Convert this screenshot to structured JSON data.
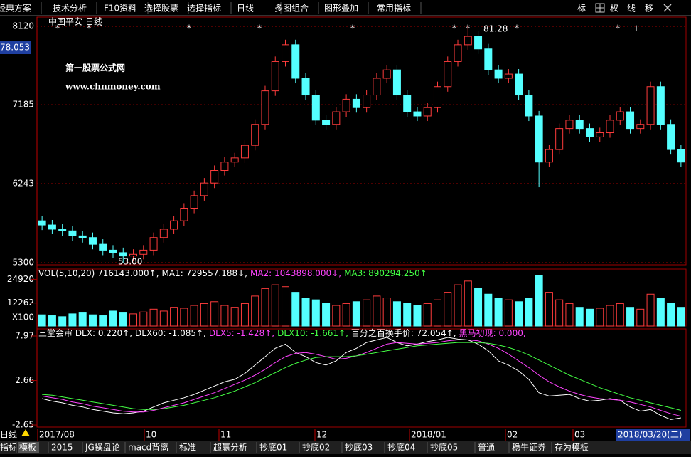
{
  "toolbar": {
    "items": [
      "经典方案",
      "技术分析",
      "F10资料",
      "选择股票",
      "选择指标",
      "日线",
      "多图组合",
      "图形叠加",
      "常用指标"
    ],
    "right_buttons": [
      "标",
      "权",
      "线",
      "移"
    ]
  },
  "chart_data": [
    {
      "type": "candlestick",
      "stock": "中国平安",
      "period": "日线",
      "current_price": "78.053",
      "max_label": "81.28",
      "min_label": "53.00",
      "watermark": [
        "第一股票公式网",
        "www.chnmoney.com"
      ],
      "up_color": "#ff3c3c",
      "down_color": "#54ffff",
      "ylim": [
        5275,
        8230
      ],
      "yticks": [
        8120,
        7185,
        6243,
        5300
      ],
      "grid": true,
      "open": [
        5800,
        5750,
        5700,
        5680,
        5620,
        5600,
        5520,
        5450,
        5420,
        5380,
        5400,
        5450,
        5600,
        5700,
        5800,
        5950,
        6100,
        6250,
        6400,
        6500,
        6550,
        6700,
        6950,
        7350,
        7700,
        7900,
        7500,
        7300,
        7000,
        6950,
        7100,
        7250,
        7150,
        7300,
        7500,
        7600,
        7300,
        7100,
        7050,
        7150,
        7400,
        7700,
        7900,
        8000,
        7850,
        7600,
        7500,
        7550,
        7300,
        7050,
        6500,
        6650,
        6900,
        7000,
        6900,
        6800,
        6850,
        7000,
        7100,
        6900,
        6950,
        7400,
        6950,
        6650
      ],
      "close": [
        5750,
        5700,
        5680,
        5620,
        5600,
        5520,
        5450,
        5420,
        5380,
        5400,
        5450,
        5600,
        5700,
        5800,
        5950,
        6100,
        6250,
        6400,
        6500,
        6550,
        6700,
        6950,
        7350,
        7700,
        7900,
        7500,
        7300,
        7000,
        6950,
        7100,
        7250,
        7150,
        7300,
        7500,
        7600,
        7300,
        7100,
        7050,
        7150,
        7400,
        7700,
        7900,
        8000,
        7850,
        7600,
        7500,
        7550,
        7300,
        7050,
        6500,
        6650,
        6900,
        7000,
        6900,
        6800,
        6850,
        7000,
        7100,
        6900,
        6950,
        7400,
        6950,
        6650,
        6500
      ],
      "high": [
        5860,
        5810,
        5760,
        5740,
        5680,
        5660,
        5580,
        5510,
        5480,
        5460,
        5510,
        5660,
        5760,
        5860,
        6010,
        6160,
        6310,
        6460,
        6560,
        6610,
        6760,
        7010,
        7410,
        7760,
        7960,
        7960,
        7560,
        7360,
        7060,
        7160,
        7310,
        7310,
        7360,
        7560,
        7660,
        7660,
        7360,
        7160,
        7210,
        7460,
        7760,
        7960,
        8128,
        8060,
        7910,
        7660,
        7610,
        7610,
        7360,
        7110,
        6710,
        6960,
        7060,
        7060,
        6960,
        6910,
        7060,
        7160,
        7160,
        7010,
        7460,
        7460,
        7010,
        6710
      ],
      "low": [
        5690,
        5640,
        5620,
        5560,
        5540,
        5460,
        5390,
        5360,
        5300,
        5320,
        5340,
        5390,
        5540,
        5640,
        5740,
        5890,
        6040,
        6190,
        6340,
        6440,
        6490,
        6640,
        6890,
        7290,
        7640,
        7440,
        7240,
        6940,
        6890,
        6890,
        7040,
        7090,
        7090,
        7240,
        7440,
        7240,
        7040,
        6990,
        6990,
        7090,
        7340,
        7640,
        7840,
        7790,
        7540,
        7440,
        7440,
        7240,
        6990,
        6200,
        6440,
        6590,
        6840,
        6840,
        6740,
        6740,
        6790,
        6940,
        6840,
        6840,
        6890,
        6890,
        6590,
        6440
      ]
    },
    {
      "type": "bar",
      "legend": [
        {
          "text": "VOL(5,10,20) 716143.000↑,",
          "color": "#ffffff"
        },
        {
          "text": "MA1: 729557.188↓,",
          "color": "#ffffff"
        },
        {
          "text": "MA2: 1043898.000↓,",
          "color": "#ff44ff"
        },
        {
          "text": "MA3: 890294.250↑",
          "color": "#44ff44"
        }
      ],
      "unit_label": "X100",
      "ylim": [
        0,
        30400
      ],
      "yticks": [
        24920,
        12262
      ],
      "values": [
        6000,
        5500,
        5000,
        6500,
        7000,
        6000,
        5500,
        8000,
        7000,
        6500,
        7500,
        9000,
        8000,
        10000,
        9500,
        11000,
        12000,
        13000,
        11000,
        10000,
        12000,
        16000,
        20000,
        22000,
        21000,
        18000,
        15000,
        14000,
        12000,
        11000,
        12000,
        13000,
        14000,
        16000,
        15000,
        13000,
        12000,
        11000,
        12000,
        14000,
        18000,
        22000,
        24000,
        20000,
        17000,
        15000,
        14000,
        13000,
        15000,
        27000,
        18000,
        14000,
        12000,
        10000,
        9000,
        9500,
        11000,
        12000,
        10000,
        9000,
        17000,
        15000,
        12000,
        10000
      ]
    },
    {
      "type": "line",
      "legend": [
        {
          "text": "三堂会审 DLX: 0.220↑,",
          "color": "#ffffff"
        },
        {
          "text": "DLX60: -1.085↑,",
          "color": "#ffffff"
        },
        {
          "text": "DLX5: -1.428↑,",
          "color": "#ff44ff"
        },
        {
          "text": "DLX10: -1.661↑,",
          "color": "#44ff44"
        },
        {
          "text": "百分之百换手价: 72.054↑,",
          "color": "#ffffff"
        },
        {
          "text": "黑马初现: 0.000,",
          "color": "#ff44ff"
        }
      ],
      "ylim": [
        -2.9,
        8.82
      ],
      "yticks": [
        7.97,
        2.66,
        -2.65
      ],
      "series": [
        {
          "color": "#ffffff",
          "values": [
            0.5,
            0.2,
            0,
            -0.3,
            -0.5,
            -0.8,
            -1,
            -1.2,
            -1.3,
            -1.2,
            -1,
            -0.5,
            0,
            0.3,
            0.6,
            1,
            1.5,
            2,
            2.5,
            2.8,
            3.5,
            4.5,
            5.5,
            6.5,
            7,
            6,
            5.5,
            4.8,
            4.5,
            5,
            6,
            6.5,
            7.2,
            7.5,
            7.8,
            7.2,
            6.8,
            7,
            7.3,
            7.5,
            7.8,
            7.6,
            7.5,
            7,
            6.2,
            5,
            4.5,
            3.8,
            2.8,
            1.2,
            0.8,
            0.9,
            1,
            0.5,
            0.2,
            0.3,
            0.5,
            0.3,
            -0.5,
            -1,
            -0.8,
            -1.5,
            -2,
            -1.8
          ]
        },
        {
          "color": "#ff44ff",
          "values": [
            0.8,
            0.6,
            0.4,
            0.1,
            -0.1,
            -0.4,
            -0.6,
            -0.8,
            -1,
            -1.1,
            -1.1,
            -0.9,
            -0.6,
            -0.3,
            0,
            0.4,
            0.8,
            1.2,
            1.7,
            2.2,
            2.7,
            3.3,
            4,
            4.8,
            5.5,
            5.9,
            6,
            5.8,
            5.5,
            5.2,
            5.3,
            5.6,
            6,
            6.5,
            7,
            7.2,
            7.1,
            7,
            7.1,
            7.2,
            7.4,
            7.5,
            7.5,
            7.4,
            7,
            6.5,
            5.8,
            5,
            4.2,
            3.3,
            2.5,
            1.9,
            1.4,
            1,
            0.7,
            0.5,
            0.4,
            0.3,
            0.1,
            -0.2,
            -0.5,
            -0.9,
            -1.3,
            -1.6
          ]
        },
        {
          "color": "#44ff44",
          "values": [
            1,
            0.9,
            0.7,
            0.5,
            0.3,
            0.1,
            -0.1,
            -0.3,
            -0.5,
            -0.7,
            -0.8,
            -0.8,
            -0.7,
            -0.5,
            -0.3,
            0,
            0.3,
            0.6,
            1,
            1.4,
            1.9,
            2.4,
            3,
            3.6,
            4.2,
            4.7,
            5.1,
            5.4,
            5.5,
            5.5,
            5.5,
            5.6,
            5.8,
            6,
            6.2,
            6.4,
            6.6,
            6.8,
            6.9,
            7,
            7.1,
            7.2,
            7.2,
            7.2,
            7.1,
            6.9,
            6.6,
            6.2,
            5.7,
            5.1,
            4.5,
            3.9,
            3.3,
            2.8,
            2.3,
            1.8,
            1.4,
            1,
            0.6,
            0.3,
            0,
            -0.3,
            -0.6,
            -0.9
          ]
        }
      ]
    }
  ],
  "date_axis": {
    "period": "日线",
    "labels": [
      "2017/08",
      "10",
      "11",
      "12",
      "2018/01",
      "02",
      "03"
    ],
    "current_date": "2018/03/20(二)"
  },
  "tabs": [
    "指标",
    "模板",
    "2015",
    "JG操盘论",
    "macd背离",
    "标准",
    "超赢分析",
    "抄底01",
    "抄底02",
    "抄底03",
    "抄底04",
    "抄底05",
    "普通",
    "稳牛证券",
    "存为模板"
  ]
}
